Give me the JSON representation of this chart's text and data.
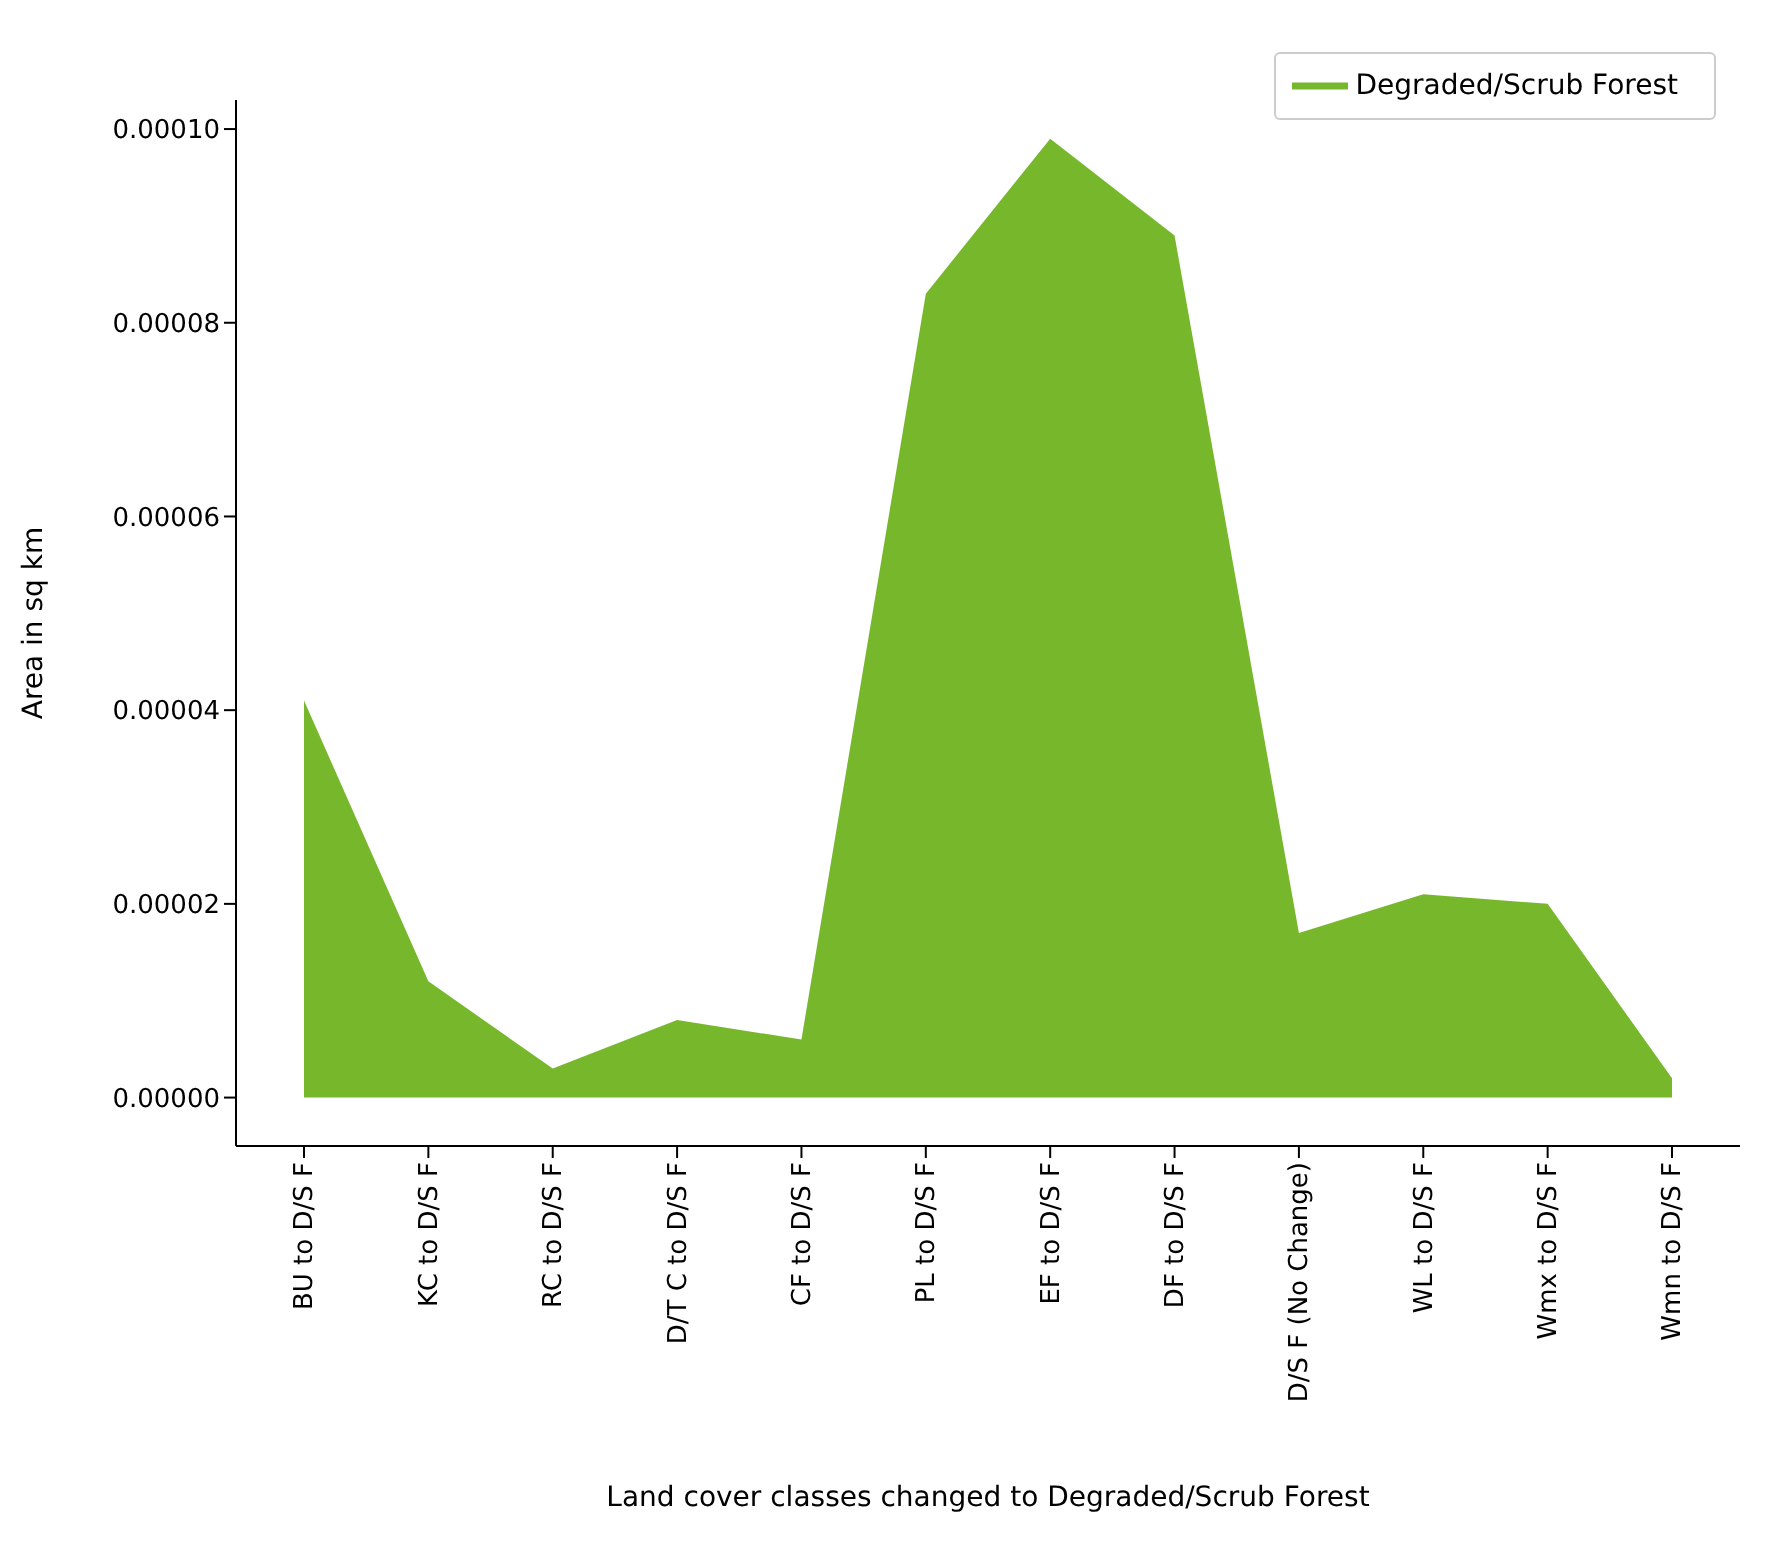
{
  "chart_data": {
    "type": "area",
    "xlabel": "Land cover classes changed to Degraded/Scrub Forest",
    "ylabel": "Area in sq km",
    "categories": [
      "BU to D/S F",
      "KC to D/S F",
      "RC to D/S F",
      "D/T C to D/S F",
      "CF to D/S F",
      "PL to D/S F",
      "EF to D/S F",
      "DF to D/S F",
      "D/S F (No Change)",
      "WL to D/S F",
      "Wmx to D/S F",
      "Wmn to D/S F"
    ],
    "series": [
      {
        "name": "Degraded/Scrub Forest",
        "color": "#77b72b",
        "values": [
          4.1e-05,
          1.2e-05,
          3e-06,
          8e-06,
          6e-06,
          8.3e-05,
          9.9e-05,
          8.9e-05,
          1.7e-05,
          2.1e-05,
          2e-05,
          2e-06
        ]
      }
    ],
    "ylim": [
      -5e-06,
      0.000103
    ],
    "yticks": [
      {
        "value": 0,
        "label": "0.00000"
      },
      {
        "value": 2e-05,
        "label": "0.00002"
      },
      {
        "value": 4e-05,
        "label": "0.00004"
      },
      {
        "value": 6e-05,
        "label": "0.00006"
      },
      {
        "value": 8e-05,
        "label": "0.00008"
      },
      {
        "value": 0.0001,
        "label": "0.00010"
      }
    ],
    "grid": false,
    "legend": "top right"
  }
}
